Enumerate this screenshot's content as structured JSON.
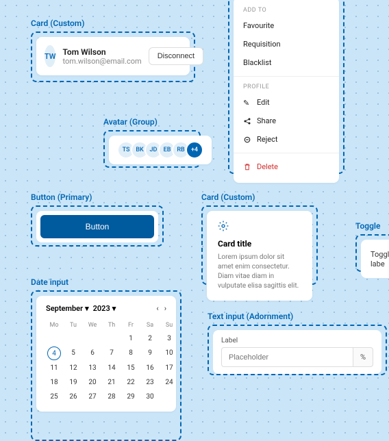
{
  "labels": {
    "card1": "Card (Custom)",
    "avatarGroup": "Avatar (Group)",
    "button": "Button (Primary)",
    "card2": "Card (Custom)",
    "toggle": "Toggle",
    "dateInput": "Date input",
    "textInput": "Text input (Adornment)"
  },
  "card1": {
    "initials": "TW",
    "name": "Tom Wilson",
    "email": "tom.wilson@email.com",
    "button": "Disconnect"
  },
  "menu": {
    "header1": "ADD TO",
    "items1": [
      "Favourite",
      "Requisition",
      "Blacklist"
    ],
    "header2": "PROFILE",
    "items2": [
      "Edit",
      "Share",
      "Reject"
    ],
    "delete": "Delete"
  },
  "avatarGroup": [
    "TS",
    "BK",
    "JD",
    "EB",
    "RB",
    "+4"
  ],
  "primaryButton": "Button",
  "card2": {
    "title": "Card title",
    "body": "Lorem ipsum dolor sit amet enim consectetur. Diam vitae diam in vulputate elisa sagittis elit."
  },
  "toggle": {
    "label": "Toggle labe"
  },
  "calendar": {
    "month": "September",
    "year": "2023",
    "dow": [
      "Mo",
      "Tu",
      "We",
      "Th",
      "Fr",
      "Sa",
      "Su"
    ],
    "startOffset": 4,
    "daysInMonth": 30,
    "selected": 4
  },
  "textInput": {
    "label": "Label",
    "placeholder": "Placeholder",
    "adornment": "%"
  },
  "colors": {
    "accent": "#0066b3",
    "bg": "#cae5f8",
    "danger": "#d32f2f"
  }
}
